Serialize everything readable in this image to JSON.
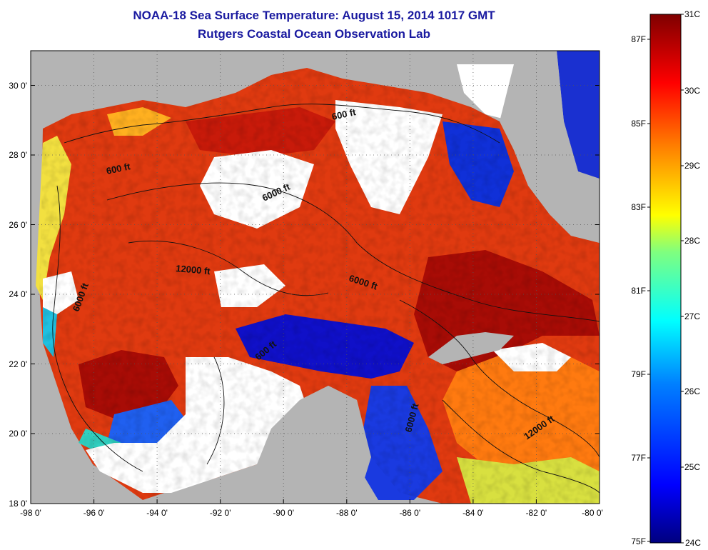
{
  "title": {
    "line1": "NOAA-18 Sea Surface Temperature:  August 15, 2014 1017 GMT",
    "line2": "Rutgers Coastal Ocean Observation Lab"
  },
  "axes": {
    "x_ticks": [
      "-98 0'",
      "-96 0'",
      "-94 0'",
      "-92 0'",
      "-90 0'",
      "-88 0'",
      "-86 0'",
      "-84 0'",
      "-82 0'",
      "-80 0'"
    ],
    "y_ticks": [
      "30 0'",
      "28 0'",
      "26 0'",
      "24 0'",
      "22 0'",
      "20 0'",
      "18 0'"
    ],
    "lon_range": [
      -98,
      -80
    ],
    "lat_range": [
      18,
      31
    ]
  },
  "contours": [
    {
      "label": "600 ft"
    },
    {
      "label": "600 ft"
    },
    {
      "label": "6000 ft"
    },
    {
      "label": "12000 ft"
    },
    {
      "label": "6000 ft"
    },
    {
      "label": "6000 ft"
    },
    {
      "label": "600 ft"
    },
    {
      "label": "6000 ft"
    },
    {
      "label": "12000 ft"
    }
  ],
  "colorbar": {
    "celsius": [
      "31C",
      "30C",
      "29C",
      "28C",
      "27C",
      "26C",
      "25C",
      "24C"
    ],
    "fahrenheit": [
      "87F",
      "85F",
      "83F",
      "81F",
      "79F",
      "77F",
      "75F"
    ],
    "colors": [
      "#00007f",
      "#0000ff",
      "#007fff",
      "#00ffff",
      "#7fff7f",
      "#ffff00",
      "#ff7f00",
      "#ff0000",
      "#7f0000"
    ]
  },
  "colors": {
    "land": "#b4b4b4",
    "cloud": "#ffffff",
    "title": "#1a1aa0"
  }
}
